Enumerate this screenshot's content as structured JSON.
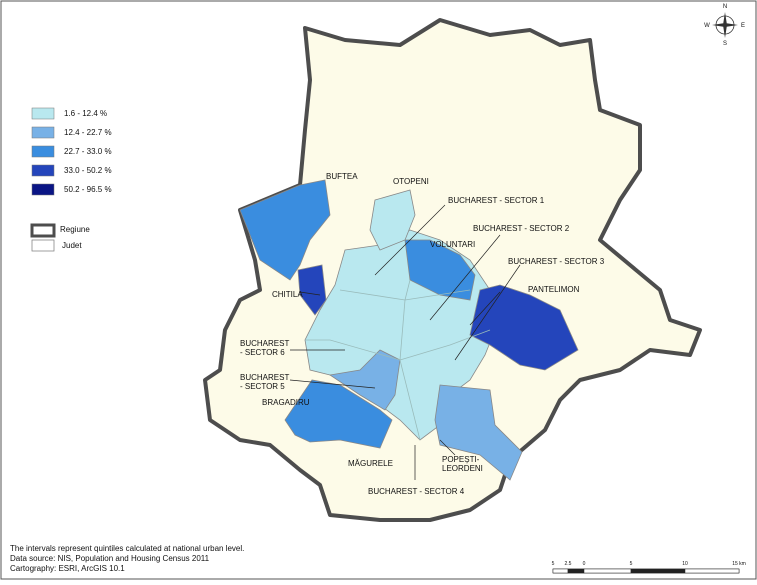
{
  "legend": {
    "classes": [
      {
        "label": "1.6 - 12.4 %",
        "color": "#b9e8ef"
      },
      {
        "label": "12.4 - 22.7 %",
        "color": "#78b1e6"
      },
      {
        "label": "22.7 - 33.0 %",
        "color": "#3a8ddf"
      },
      {
        "label": "33.0 - 50.2 %",
        "color": "#2445bb"
      },
      {
        "label": "50.2 - 96.5 %",
        "color": "#0a1585"
      }
    ],
    "boundaries": [
      "Regiune",
      "Judet"
    ]
  },
  "places": {
    "buftea": "BUFTEA",
    "otopeni": "OTOPENI",
    "sector1": "BUCHAREST - SECTOR 1",
    "sector2": "BUCHAREST - SECTOR 2",
    "voluntari": "VOLUNTARI",
    "sector3": "BUCHAREST - SECTOR 3",
    "pantelimon": "PANTELIMON",
    "chitila": "CHITILA",
    "sector6": [
      "BUCHAREST",
      "- SECTOR 6"
    ],
    "sector5": [
      "BUCHAREST",
      "- SECTOR 5"
    ],
    "bragadiru": "BRAGADIRU",
    "magurele": "MĂGURELE",
    "popesti": [
      "POPEȘTI-",
      "LEORDENI"
    ],
    "sector4": "BUCHAREST - SECTOR 4"
  },
  "notes": [
    "The intervals represent quintiles calculated at national urban level.",
    "Data source: NIS, Population and Housing Census 2011",
    "Cartography: ESRI, ArcGIS 10.1"
  ],
  "compass": {
    "n": "N",
    "s": "S",
    "e": "E",
    "w": "W"
  },
  "scale_bar": [
    "5",
    "2.5",
    "0",
    "5",
    "10",
    "15 km"
  ]
}
